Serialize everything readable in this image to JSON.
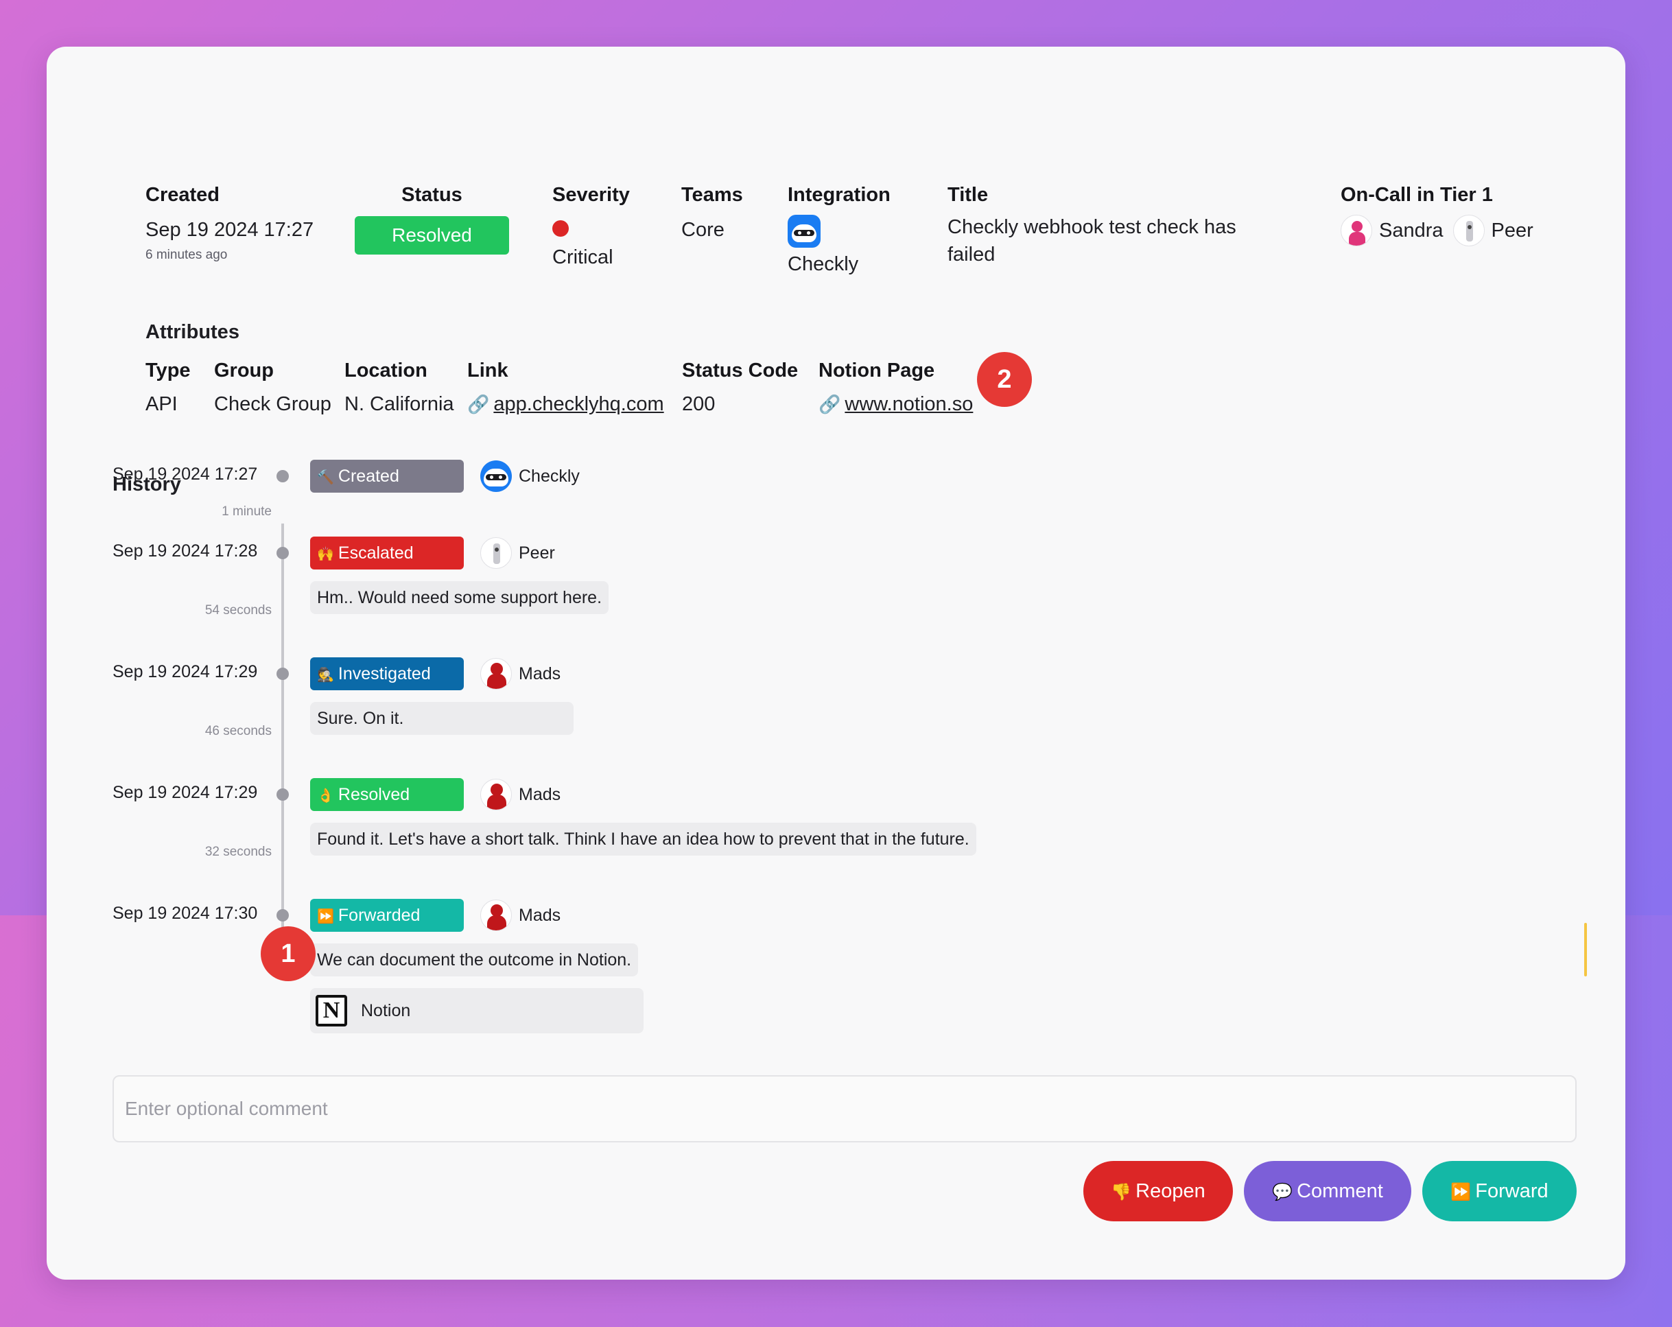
{
  "summary": {
    "created": {
      "label": "Created",
      "value": "Sep 19 2024 17:27",
      "sub": "6 minutes ago"
    },
    "status": {
      "label": "Status",
      "value": "Resolved"
    },
    "severity": {
      "label": "Severity",
      "value": "Critical",
      "color": "#dc2626"
    },
    "teams": {
      "label": "Teams",
      "value": "Core"
    },
    "integration": {
      "label": "Integration",
      "value": "Checkly",
      "icon": "checkly-raccoon-icon"
    },
    "title": {
      "label": "Title",
      "value": "Checkly webhook test check has failed"
    },
    "oncall": {
      "label": "On-Call in Tier 1",
      "people": [
        "Sandra",
        "Peer"
      ]
    }
  },
  "attributes": {
    "title": "Attributes",
    "type": {
      "label": "Type",
      "value": "API"
    },
    "group": {
      "label": "Group",
      "value": "Check Group"
    },
    "location": {
      "label": "Location",
      "value": "N. California"
    },
    "link": {
      "label": "Link",
      "value": "app.checklyhq.com"
    },
    "status_code": {
      "label": "Status Code",
      "value": "200"
    },
    "notion_page": {
      "label": "Notion Page",
      "value": "www.notion.so"
    }
  },
  "badges": {
    "one": "1",
    "two": "2"
  },
  "history": {
    "title": "History",
    "items": [
      {
        "time": "Sep 19 2024 17:27",
        "event": "Created",
        "icon": "hammer-icon",
        "color": "#7c7a8a",
        "actor": "Checkly",
        "comment": "",
        "duration_after": "1 minute"
      },
      {
        "time": "Sep 19 2024 17:28",
        "event": "Escalated",
        "icon": "raised-hands-icon",
        "color": "#dc2626",
        "actor": "Peer",
        "comment": "Hm.. Would need some support here.",
        "duration_after": "54 seconds"
      },
      {
        "time": "Sep 19 2024 17:29",
        "event": "Investigated",
        "icon": "detective-icon",
        "color": "#0b6aa8",
        "actor": "Mads",
        "comment": "Sure. On it.",
        "duration_after": "46 seconds"
      },
      {
        "time": "Sep 19 2024 17:29",
        "event": "Resolved",
        "icon": "ok-hand-icon",
        "color": "#22c55e",
        "actor": "Mads",
        "comment": "Found it. Let's have a short talk. Think I have an idea how to prevent that in the future.",
        "duration_after": "32 seconds"
      },
      {
        "time": "Sep 19 2024 17:30",
        "event": "Forwarded",
        "icon": "fast-forward-icon",
        "color": "#14b8a6",
        "actor": "Mads",
        "comment": "We can document the outcome in Notion.",
        "duration_after": ""
      }
    ],
    "attachment": {
      "label": "Notion",
      "icon": "notion-icon"
    }
  },
  "comment_input": {
    "placeholder": "Enter optional comment",
    "value": ""
  },
  "actions": {
    "reopen": "Reopen",
    "comment": "Comment",
    "forward": "Forward",
    "colors": {
      "reopen": "#dc2626",
      "comment": "#7c5fd8",
      "forward": "#14b8a6"
    }
  }
}
